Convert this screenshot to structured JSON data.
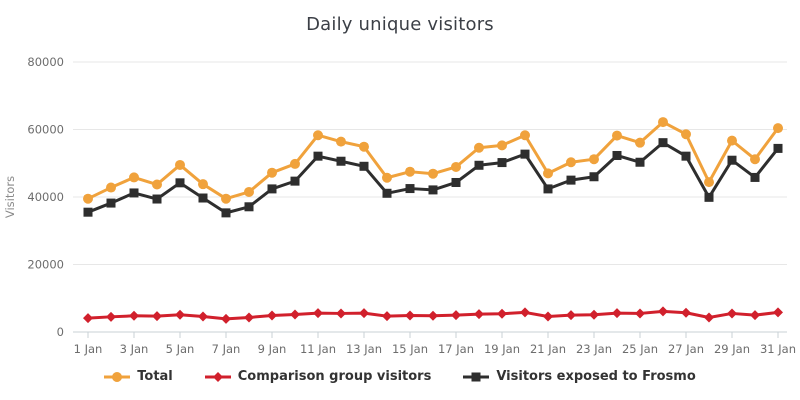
{
  "header": {
    "title": "Daily unique visitors"
  },
  "chart_data": {
    "type": "line",
    "title": "Daily unique visitors",
    "xlabel": "",
    "ylabel": "Visitors",
    "ylim": [
      0,
      80000
    ],
    "yticks": [
      0,
      20000,
      40000,
      60000,
      80000
    ],
    "x_tick_every": 2,
    "grid": "horizontal",
    "legend_position": "bottom",
    "categories": [
      "1 Jan",
      "2 Jan",
      "3 Jan",
      "4 Jan",
      "5 Jan",
      "6 Jan",
      "7 Jan",
      "8 Jan",
      "9 Jan",
      "10 Jan",
      "11 Jan",
      "12 Jan",
      "13 Jan",
      "14 Jan",
      "15 Jan",
      "16 Jan",
      "17 Jan",
      "18 Jan",
      "19 Jan",
      "20 Jan",
      "21 Jan",
      "22 Jan",
      "23 Jan",
      "24 Jan",
      "25 Jan",
      "26 Jan",
      "27 Jan",
      "28 Jan",
      "29 Jan",
      "30 Jan",
      "31 Jan"
    ],
    "visible_x_tick_labels": [
      "1 Jan",
      "3 Jan",
      "5 Jan",
      "7 Jan",
      "9 Jan",
      "11 Jan",
      "13 Jan",
      "15 Jan",
      "17 Jan",
      "19 Jan",
      "21 Jan",
      "23 Jan",
      "25 Jan",
      "27 Jan",
      "29 Jan",
      "31 Jan"
    ],
    "series": [
      {
        "name": "Total",
        "color": "#F0A23C",
        "marker": "circle",
        "values": [
          39500,
          42800,
          45800,
          43700,
          49500,
          43800,
          39500,
          41500,
          47200,
          49800,
          58300,
          56400,
          54900,
          45700,
          47500,
          46900,
          48900,
          54600,
          55300,
          58300,
          47000,
          50300,
          51200,
          58200,
          56100,
          62200,
          58600,
          44400,
          56700,
          51200,
          60400
        ]
      },
      {
        "name": "Comparison group visitors",
        "color": "#D1202C",
        "marker": "diamond",
        "values": [
          4100,
          4500,
          4800,
          4700,
          5100,
          4600,
          3900,
          4300,
          4900,
          5200,
          5600,
          5500,
          5600,
          4700,
          4900,
          4800,
          5000,
          5300,
          5400,
          5800,
          4600,
          5000,
          5100,
          5600,
          5500,
          6100,
          5700,
          4300,
          5500,
          5000,
          5800
        ]
      },
      {
        "name": "Visitors exposed to Frosmo",
        "color": "#2E2E2E",
        "marker": "square",
        "values": [
          35500,
          38200,
          41200,
          39400,
          44200,
          39700,
          35300,
          37100,
          42400,
          44700,
          52100,
          50600,
          49100,
          41100,
          42500,
          42100,
          44300,
          49400,
          50200,
          52700,
          42400,
          45000,
          46000,
          52300,
          50300,
          56100,
          52100,
          39900,
          50900,
          45800,
          54400
        ]
      }
    ],
    "style": {
      "grid_color": "#E7E7E7",
      "axis_line_color": "#C9D0D6",
      "tick_label_color": "#6D6D6D",
      "ylabel_color": "#8A8A8A",
      "title_color": "#3B3F46",
      "legend_text_color": "#333333",
      "background": "#FFFFFF"
    }
  }
}
